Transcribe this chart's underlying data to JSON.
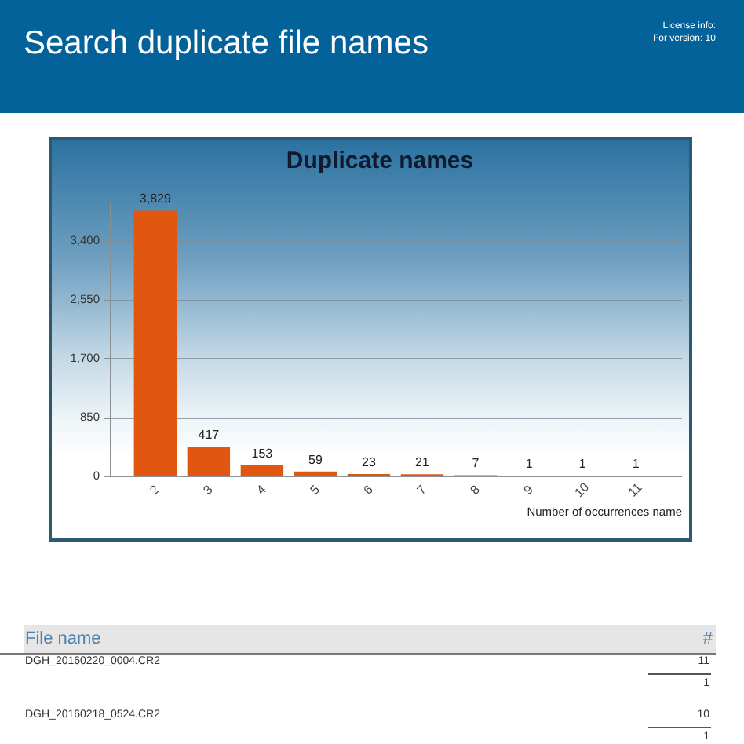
{
  "chart_data": {
    "type": "bar",
    "title": "Search duplicate file names",
    "subtitle": "Duplicate names",
    "xlabel": "Number of occurrences name",
    "categories": [
      "2",
      "3",
      "4",
      "5",
      "6",
      "7",
      "8",
      "9",
      "10",
      "11"
    ],
    "values": [
      3829,
      417,
      153,
      59,
      23,
      21,
      7,
      1,
      1,
      1
    ],
    "value_labels": [
      "3,829",
      "417",
      "153",
      "59",
      "23",
      "21",
      "7",
      "1",
      "1",
      "1"
    ],
    "color": "#e2570f",
    "ylim": [
      0,
      3970
    ],
    "yticks": [
      0,
      850,
      {
        "value": 1700,
        "label": "1,700"
      },
      {
        "value": 2550,
        "label": "2,550"
      },
      {
        "value": 3400,
        "label": "3,400"
      }
    ],
    "grid": "y",
    "annotations": [
      "License info:",
      "For version: 10",
      "File name",
      "#",
      "DGH_20160220_0004.CR2",
      "11",
      "1",
      "DGH_20160218_0524.CR2",
      "10",
      "1"
    ]
  }
}
